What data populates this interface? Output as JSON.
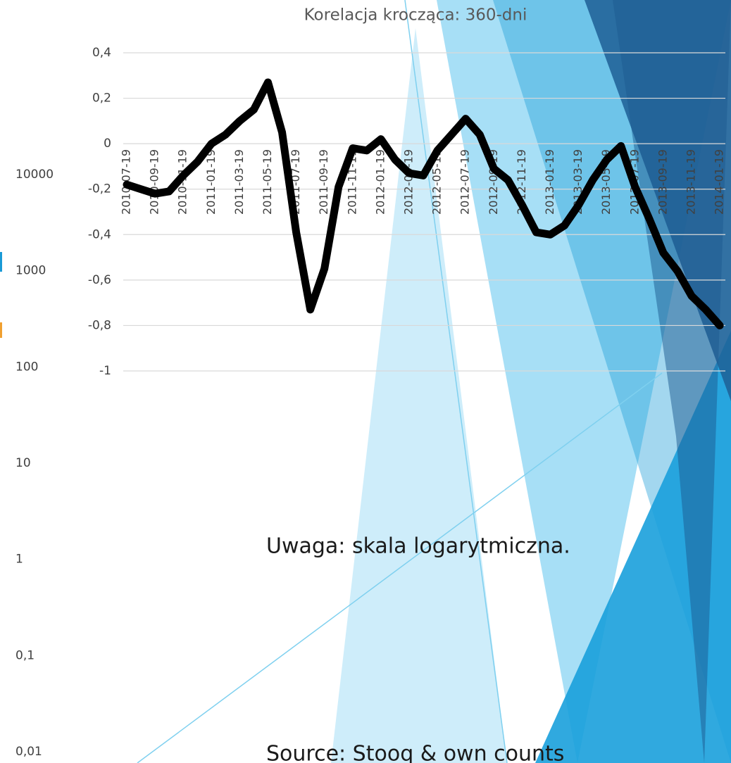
{
  "chart_data": [
    {
      "type": "line",
      "title": "Korelacja krocząca: 360-dni",
      "categories": [
        "2010-07-19",
        null,
        "2010-09-19",
        null,
        "2010-11-19",
        null,
        "2011-01-19",
        null,
        "2011-03-19",
        null,
        "2011-05-19",
        null,
        "2011-07-19",
        null,
        "2011-09-19",
        null,
        "2011-11-19",
        null,
        "2012-01-19",
        null,
        "2012-03-19",
        null,
        "2012-05-19",
        null,
        "2012-07-19",
        null,
        "2012-09-19",
        null,
        "2012-11-19",
        null,
        "2013-01-19",
        null,
        "2013-03-19",
        null,
        "2013-05-19",
        null,
        "2013-07-19",
        null,
        "2013-09-19",
        null,
        "2013-11-19",
        null,
        "2014-01-19"
      ],
      "series": [
        {
          "color": "#000000",
          "values": [
            -0.18,
            -0.2,
            -0.22,
            -0.21,
            -0.14,
            -0.08,
            0.0,
            0.04,
            0.1,
            0.15,
            0.27,
            0.05,
            -0.39,
            -0.73,
            -0.55,
            -0.19,
            -0.02,
            -0.03,
            0.02,
            -0.07,
            -0.13,
            -0.14,
            -0.03,
            0.04,
            0.11,
            0.04,
            -0.11,
            -0.16,
            -0.27,
            -0.39,
            -0.4,
            -0.36,
            -0.27,
            -0.16,
            -0.07,
            -0.01,
            -0.19,
            -0.33,
            -0.48,
            -0.56,
            -0.67,
            -0.73,
            -0.8
          ]
        }
      ],
      "ylim": [
        -1,
        0.4
      ],
      "yticks": [
        {
          "value": 0.4,
          "label": "0,4"
        },
        {
          "value": 0.2,
          "label": "0,2"
        },
        0,
        {
          "value": -0.2,
          "label": "-0,2"
        },
        {
          "value": -0.4,
          "label": "-0,4"
        },
        {
          "value": -0.6,
          "label": "-0,6"
        },
        {
          "value": -0.8,
          "label": "-0,8"
        },
        -1
      ],
      "grid": true
    },
    {
      "type": "axis",
      "log_scale": true,
      "ylim": [
        0.01,
        10000
      ],
      "yticks": [
        10000,
        1000,
        100,
        10,
        1,
        {
          "value": 0.1,
          "label": "0,1"
        },
        {
          "value": 0.01,
          "label": "0,01"
        }
      ]
    }
  ],
  "notes": [
    "Uwaga: skala logarytmiczna.",
    "Source: Stooq & own counts"
  ]
}
